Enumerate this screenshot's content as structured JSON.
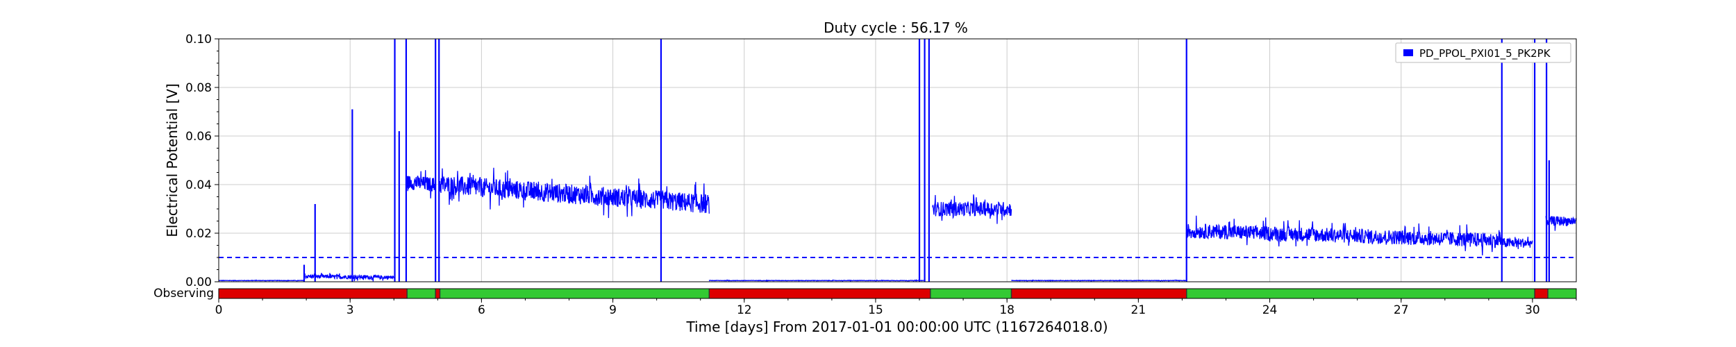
{
  "chart_data": {
    "type": "line",
    "title": "Duty cycle : 56.17 %",
    "xlabel": "Time [days] From 2017-01-01 00:00:00 UTC (1167264018.0)",
    "ylabel": "Electrical Potential [V]",
    "xlim": [
      0,
      31
    ],
    "ylim": [
      0,
      0.1
    ],
    "x_ticks": [
      0,
      3,
      6,
      9,
      12,
      15,
      18,
      21,
      24,
      27,
      30
    ],
    "x_tick_labels": [
      "0",
      "3",
      "6",
      "9",
      "12",
      "15",
      "18",
      "21",
      "24",
      "27",
      "30"
    ],
    "y_ticks": [
      0,
      0.02,
      0.04,
      0.06,
      0.08,
      0.1
    ],
    "y_tick_labels": [
      "0.00",
      "0.02",
      "0.04",
      "0.06",
      "0.08",
      "0.10"
    ],
    "grid": true,
    "legend_position": "top-right",
    "threshold": {
      "value": 0.01,
      "style": "dashed",
      "color": "#0000ff"
    },
    "series": [
      {
        "name": "PD_PPOL_PXI01_5_PK2PK",
        "color": "#0000ff",
        "segments": [
          {
            "x": [
              0,
              1.95
            ],
            "y": [
              0.0005,
              0.0005
            ],
            "noise": 0.0001
          },
          {
            "x": [
              1.95,
              4.0
            ],
            "y": [
              0.0022,
              0.0018
            ],
            "noise": 0.0008
          },
          {
            "x": [
              4.3,
              4.95
            ],
            "y": [
              0.041,
              0.04
            ],
            "noise": 0.003
          },
          {
            "x": [
              5.05,
              11.2
            ],
            "y": [
              0.04,
              0.032
            ],
            "noise": 0.004
          },
          {
            "x": [
              11.2,
              16.1
            ],
            "y": [
              0.0005,
              0.0005
            ],
            "noise": 0.0001
          },
          {
            "x": [
              16.3,
              18.1
            ],
            "y": [
              0.03,
              0.03
            ],
            "noise": 0.003
          },
          {
            "x": [
              18.1,
              22.1
            ],
            "y": [
              0.0005,
              0.0005
            ],
            "noise": 0.0001
          },
          {
            "x": [
              22.1,
              29.3
            ],
            "y": [
              0.021,
              0.017
            ],
            "noise": 0.003
          },
          {
            "x": [
              29.3,
              30.0
            ],
            "y": [
              0.016,
              0.016
            ],
            "noise": 0.002
          },
          {
            "x": [
              30.3,
              31.0
            ],
            "y": [
              0.025,
              0.025
            ],
            "noise": 0.002
          }
        ],
        "spikes": [
          {
            "x": 1.95,
            "y": 0.007
          },
          {
            "x": 2.2,
            "y": 0.032
          },
          {
            "x": 3.05,
            "y": 0.071
          },
          {
            "x": 4.02,
            "y": 0.1
          },
          {
            "x": 4.12,
            "y": 0.062
          },
          {
            "x": 4.28,
            "y": 0.1
          },
          {
            "x": 4.95,
            "y": 0.1
          },
          {
            "x": 5.03,
            "y": 0.1
          },
          {
            "x": 10.1,
            "y": 0.1
          },
          {
            "x": 16.0,
            "y": 0.1
          },
          {
            "x": 16.12,
            "y": 0.1
          },
          {
            "x": 16.22,
            "y": 0.1
          },
          {
            "x": 22.1,
            "y": 0.1
          },
          {
            "x": 29.3,
            "y": 0.1
          },
          {
            "x": 30.05,
            "y": 0.1
          },
          {
            "x": 30.32,
            "y": 0.1
          },
          {
            "x": 30.38,
            "y": 0.05
          }
        ]
      }
    ],
    "state_bar": {
      "label": "Observing",
      "on_color": "#33c933",
      "off_color": "#dd0000",
      "segments": [
        {
          "start": 0,
          "end": 4.3,
          "state": "off"
        },
        {
          "start": 4.3,
          "end": 4.95,
          "state": "on"
        },
        {
          "start": 4.95,
          "end": 5.05,
          "state": "off"
        },
        {
          "start": 5.05,
          "end": 11.2,
          "state": "on"
        },
        {
          "start": 11.2,
          "end": 16.25,
          "state": "off"
        },
        {
          "start": 16.25,
          "end": 18.1,
          "state": "on"
        },
        {
          "start": 18.1,
          "end": 22.1,
          "state": "off"
        },
        {
          "start": 22.1,
          "end": 30.05,
          "state": "on"
        },
        {
          "start": 30.05,
          "end": 30.35,
          "state": "off"
        },
        {
          "start": 30.35,
          "end": 31.0,
          "state": "on"
        }
      ]
    }
  }
}
